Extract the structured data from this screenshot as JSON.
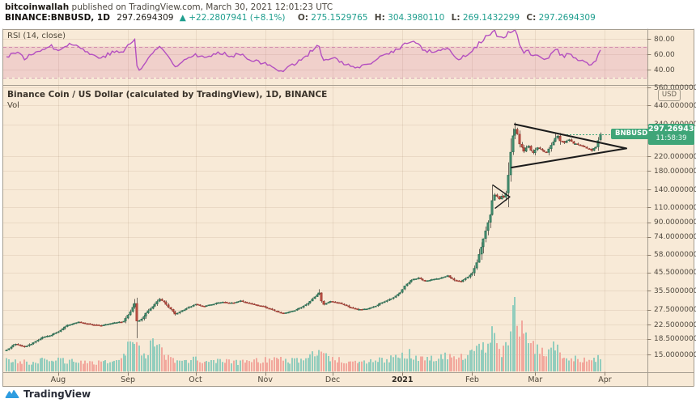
{
  "header": {
    "author": "bitcoinwallah",
    "published": " published on TradingView.com, March 30, 2021 12:01:23 UTC",
    "symbol": "BINANCE:BNBUSD, 1D",
    "last": "297.2694309",
    "change": "▲ +22.2807941 (+8.1%)",
    "o_label": "O:",
    "o_value": "275.1529765",
    "h_label": "H:",
    "h_value": "304.3980110",
    "l_label": "L:",
    "l_value": "269.1432299",
    "c_label": "C:",
    "c_value": "297.2694309"
  },
  "rsi_panel": {
    "title": "RSI (14, close)"
  },
  "main_panel": {
    "title": "Binance Coin / US Dollar (calculated by TradingView), 1D, BINANCE",
    "vol_label": "Vol",
    "usd_button": "USD",
    "symbol_badge": "BNBUSD",
    "price_label": "297.2694309",
    "time_label": "11:58:39"
  },
  "footer": {
    "brand": "TradingView"
  },
  "colors": {
    "panel_bg": "#f8ead7",
    "border": "#a59d90",
    "grid": "rgba(141,110,77,0.13)",
    "teal": "#1f9e8e",
    "rsi_line": "#b44fc0",
    "rsi_band_fill": "rgba(199,77,142,0.16)",
    "rsi_band_edge": "rgba(185,90,150,0.55)",
    "candle_up": "#4f9e7d",
    "candle_up_border": "#2f7257",
    "candle_down": "#cc584b",
    "candle_down_border": "#a23f35",
    "wick": "#6f675e",
    "vol_up": "#92cdbd",
    "vol_down": "#f2a89d",
    "price_label_bg": "#3fa578",
    "drawing": "#1b1b1b",
    "logo_blue": "#2f9de0"
  },
  "chart_data": [
    {
      "type": "line",
      "name": "RSI (14, close)",
      "pane": "rsi",
      "ylim": [
        20,
        92
      ],
      "band": [
        30,
        70
      ],
      "ticks": [
        80,
        60,
        40
      ],
      "anchors": [
        [
          0,
          57
        ],
        [
          4,
          63
        ],
        [
          8,
          55
        ],
        [
          12,
          60
        ],
        [
          16,
          68
        ],
        [
          20,
          70
        ],
        [
          23,
          66
        ],
        [
          27,
          73
        ],
        [
          32,
          71
        ],
        [
          37,
          60
        ],
        [
          42,
          56
        ],
        [
          47,
          62
        ],
        [
          52,
          64
        ],
        [
          55,
          74
        ],
        [
          57,
          79
        ],
        [
          58,
          46
        ],
        [
          59,
          38
        ],
        [
          60,
          42
        ],
        [
          63,
          55
        ],
        [
          66,
          64
        ],
        [
          68,
          70
        ],
        [
          70,
          65
        ],
        [
          73,
          52
        ],
        [
          75,
          44
        ],
        [
          78,
          52
        ],
        [
          81,
          56
        ],
        [
          84,
          60
        ],
        [
          88,
          55
        ],
        [
          92,
          59
        ],
        [
          96,
          62
        ],
        [
          100,
          58
        ],
        [
          104,
          61
        ],
        [
          108,
          54
        ],
        [
          112,
          50
        ],
        [
          115,
          47
        ],
        [
          119,
          42
        ],
        [
          123,
          39
        ],
        [
          127,
          46
        ],
        [
          131,
          53
        ],
        [
          134,
          60
        ],
        [
          137,
          68
        ],
        [
          139,
          72
        ],
        [
          140,
          57
        ],
        [
          141,
          50
        ],
        [
          144,
          55
        ],
        [
          148,
          52
        ],
        [
          152,
          45
        ],
        [
          156,
          42
        ],
        [
          160,
          45
        ],
        [
          164,
          52
        ],
        [
          168,
          59
        ],
        [
          172,
          64
        ],
        [
          175,
          69
        ],
        [
          177,
          73
        ],
        [
          180,
          76
        ],
        [
          183,
          74
        ],
        [
          186,
          63
        ],
        [
          189,
          64
        ],
        [
          193,
          66
        ],
        [
          196,
          68
        ],
        [
          199,
          57
        ],
        [
          202,
          54
        ],
        [
          205,
          61
        ],
        [
          207,
          65
        ],
        [
          209,
          71
        ],
        [
          211,
          77
        ],
        [
          213,
          82
        ],
        [
          215,
          86
        ],
        [
          216,
          88
        ],
        [
          217,
          89
        ],
        [
          218,
          84
        ],
        [
          219,
          81
        ],
        [
          220,
          83
        ],
        [
          221,
          80
        ],
        [
          222,
          82
        ],
        [
          223,
          87
        ],
        [
          224,
          90
        ],
        [
          225,
          91
        ],
        [
          226,
          92
        ],
        [
          227,
          83
        ],
        [
          228,
          72
        ],
        [
          229,
          66
        ],
        [
          230,
          61
        ],
        [
          231,
          63
        ],
        [
          232,
          64
        ],
        [
          233,
          59
        ],
        [
          234,
          56
        ],
        [
          235,
          58
        ],
        [
          236,
          60
        ],
        [
          238,
          57
        ],
        [
          240,
          54
        ],
        [
          242,
          60
        ],
        [
          244,
          65
        ],
        [
          245,
          66
        ],
        [
          246,
          60
        ],
        [
          248,
          57
        ],
        [
          250,
          61
        ],
        [
          252,
          56
        ],
        [
          254,
          54
        ],
        [
          256,
          52
        ],
        [
          258,
          49
        ],
        [
          260,
          46
        ],
        [
          262,
          53
        ],
        [
          263,
          59
        ],
        [
          264,
          64
        ]
      ]
    },
    {
      "type": "candlestick",
      "name": "Binance Coin / US Dollar, 1D, BINANCE",
      "pane": "price",
      "scale": "log",
      "start_date": "2020-07-09",
      "end_date": "2021-03-30",
      "days": 265,
      "price_ticks": [
        560,
        440,
        340,
        220,
        180,
        140,
        110,
        90,
        74,
        58,
        45.5,
        35.5,
        27.5,
        22.5,
        18.5,
        15
      ],
      "months": [
        {
          "label": "Aug",
          "day": 23
        },
        {
          "label": "Sep",
          "day": 54
        },
        {
          "label": "Oct",
          "day": 84
        },
        {
          "label": "Nov",
          "day": 115
        },
        {
          "label": "Dec",
          "day": 145
        },
        {
          "label": "2021",
          "day": 176
        },
        {
          "label": "Feb",
          "day": 207
        },
        {
          "label": "Mar",
          "day": 235
        },
        {
          "label": "Apr",
          "day": 266
        }
      ],
      "close_anchors": [
        [
          0,
          16.0
        ],
        [
          4,
          17.3
        ],
        [
          8,
          16.6
        ],
        [
          12,
          17.6
        ],
        [
          16,
          18.9
        ],
        [
          20,
          19.6
        ],
        [
          23,
          20.4
        ],
        [
          27,
          22.3
        ],
        [
          32,
          23.3
        ],
        [
          37,
          22.6
        ],
        [
          42,
          22.2
        ],
        [
          47,
          23.0
        ],
        [
          52,
          23.5
        ],
        [
          55,
          26.8
        ],
        [
          57,
          30.0
        ],
        [
          58,
          23.5
        ],
        [
          60,
          24.2
        ],
        [
          63,
          27.2
        ],
        [
          66,
          29.6
        ],
        [
          68,
          31.8
        ],
        [
          70,
          30.4
        ],
        [
          73,
          27.6
        ],
        [
          75,
          25.8
        ],
        [
          78,
          27.2
        ],
        [
          81,
          28.4
        ],
        [
          84,
          29.6
        ],
        [
          88,
          28.8
        ],
        [
          92,
          29.8
        ],
        [
          96,
          30.6
        ],
        [
          100,
          30.2
        ],
        [
          104,
          31.0
        ],
        [
          108,
          30.0
        ],
        [
          112,
          29.2
        ],
        [
          115,
          28.5
        ],
        [
          119,
          27.2
        ],
        [
          123,
          26.2
        ],
        [
          127,
          27.0
        ],
        [
          131,
          28.4
        ],
        [
          134,
          30.0
        ],
        [
          137,
          32.8
        ],
        [
          139,
          34.6
        ],
        [
          140,
          31.0
        ],
        [
          141,
          29.6
        ],
        [
          144,
          30.8
        ],
        [
          148,
          30.2
        ],
        [
          152,
          28.6
        ],
        [
          156,
          27.6
        ],
        [
          160,
          27.9
        ],
        [
          164,
          29.0
        ],
        [
          168,
          30.8
        ],
        [
          172,
          32.4
        ],
        [
          175,
          34.8
        ],
        [
          177,
          38.0
        ],
        [
          180,
          41.2
        ],
        [
          183,
          42.4
        ],
        [
          186,
          40.6
        ],
        [
          189,
          41.4
        ],
        [
          193,
          42.4
        ],
        [
          196,
          43.6
        ],
        [
          199,
          41.0
        ],
        [
          202,
          40.4
        ],
        [
          205,
          43.0
        ],
        [
          207,
          45.0
        ],
        [
          209,
          52.0
        ],
        [
          211,
          64.0
        ],
        [
          213,
          80.0
        ],
        [
          215,
          100.0
        ],
        [
          216,
          122.0
        ],
        [
          217,
          131.0
        ],
        [
          218,
          127.0
        ],
        [
          219,
          124.0
        ],
        [
          220,
          128.0
        ],
        [
          221,
          126.0
        ],
        [
          222,
          133.0
        ],
        [
          223,
          170.0
        ],
        [
          224,
          232.0
        ],
        [
          225,
          290.0
        ],
        [
          226,
          316.0
        ],
        [
          227,
          298.0
        ],
        [
          228,
          262.0
        ],
        [
          229,
          248.0
        ],
        [
          230,
          236.0
        ],
        [
          231,
          246.0
        ],
        [
          232,
          252.0
        ],
        [
          233,
          240.0
        ],
        [
          234,
          231.0
        ],
        [
          235,
          240.0
        ],
        [
          236,
          247.0
        ],
        [
          238,
          239.0
        ],
        [
          240,
          231.0
        ],
        [
          242,
          256.0
        ],
        [
          244,
          283.0
        ],
        [
          245,
          291.0
        ],
        [
          246,
          272.0
        ],
        [
          248,
          264.0
        ],
        [
          250,
          277.0
        ],
        [
          252,
          263.0
        ],
        [
          254,
          257.0
        ],
        [
          256,
          252.0
        ],
        [
          258,
          246.0
        ],
        [
          260,
          239.0
        ],
        [
          262,
          250.0
        ],
        [
          263,
          272.0
        ],
        [
          264,
          297.2694309
        ]
      ],
      "wick_overrides": {
        "57": [
          31.8,
          null
        ],
        "58": [
          null,
          18.7
        ],
        "139": [
          36.3,
          null
        ],
        "216": [
          149,
          null
        ],
        "226": [
          348,
          null
        ],
        "244": [
          300,
          null
        ]
      },
      "today_ohlc": {
        "open": 275.1529765,
        "high": 304.398011,
        "low": 269.1432299,
        "close": 297.2694309
      },
      "volume_rel_anchors": [
        [
          0,
          0.14
        ],
        [
          10,
          0.12
        ],
        [
          20,
          0.16
        ],
        [
          30,
          0.13
        ],
        [
          40,
          0.12
        ],
        [
          50,
          0.14
        ],
        [
          55,
          0.38
        ],
        [
          57,
          0.46
        ],
        [
          59,
          0.3
        ],
        [
          62,
          0.22
        ],
        [
          65,
          0.44
        ],
        [
          67,
          0.4
        ],
        [
          70,
          0.22
        ],
        [
          75,
          0.16
        ],
        [
          80,
          0.14
        ],
        [
          84,
          0.16
        ],
        [
          90,
          0.13
        ],
        [
          96,
          0.14
        ],
        [
          102,
          0.12
        ],
        [
          108,
          0.13
        ],
        [
          115,
          0.15
        ],
        [
          120,
          0.17
        ],
        [
          126,
          0.14
        ],
        [
          131,
          0.16
        ],
        [
          135,
          0.2
        ],
        [
          138,
          0.3
        ],
        [
          139,
          0.34
        ],
        [
          141,
          0.26
        ],
        [
          144,
          0.18
        ],
        [
          150,
          0.14
        ],
        [
          156,
          0.13
        ],
        [
          162,
          0.14
        ],
        [
          168,
          0.16
        ],
        [
          172,
          0.18
        ],
        [
          176,
          0.22
        ],
        [
          180,
          0.24
        ],
        [
          184,
          0.18
        ],
        [
          188,
          0.16
        ],
        [
          192,
          0.18
        ],
        [
          196,
          0.2
        ],
        [
          200,
          0.18
        ],
        [
          204,
          0.2
        ],
        [
          207,
          0.26
        ],
        [
          210,
          0.3
        ],
        [
          213,
          0.36
        ],
        [
          216,
          0.52
        ],
        [
          218,
          0.3
        ],
        [
          220,
          0.26
        ],
        [
          222,
          0.32
        ],
        [
          224,
          0.48
        ],
        [
          226,
          1.0
        ],
        [
          227,
          0.5
        ],
        [
          228,
          0.44
        ],
        [
          230,
          0.62
        ],
        [
          232,
          0.4
        ],
        [
          234,
          0.34
        ],
        [
          236,
          0.3
        ],
        [
          238,
          0.26
        ],
        [
          240,
          0.24
        ],
        [
          242,
          0.28
        ],
        [
          244,
          0.34
        ],
        [
          246,
          0.26
        ],
        [
          248,
          0.22
        ],
        [
          250,
          0.2
        ],
        [
          252,
          0.18
        ],
        [
          254,
          0.16
        ],
        [
          256,
          0.15
        ],
        [
          258,
          0.14
        ],
        [
          260,
          0.13
        ],
        [
          262,
          0.16
        ],
        [
          264,
          0.22
        ]
      ],
      "annotations": {
        "price_line": 297.2694309,
        "pennants": [
          {
            "upper": [
              [
                225.9,
                340
              ],
              [
                275.5,
                245
              ]
            ],
            "lower": [
              [
                224.5,
                189
              ],
              [
                275.5,
                245
              ]
            ],
            "width": 2
          },
          {
            "upper": [
              [
                216.2,
                149
              ],
              [
                223.7,
                127
              ]
            ],
            "lower": [
              [
                217.3,
                109
              ],
              [
                223.7,
                127
              ]
            ],
            "width": 1.4
          }
        ]
      }
    }
  ]
}
